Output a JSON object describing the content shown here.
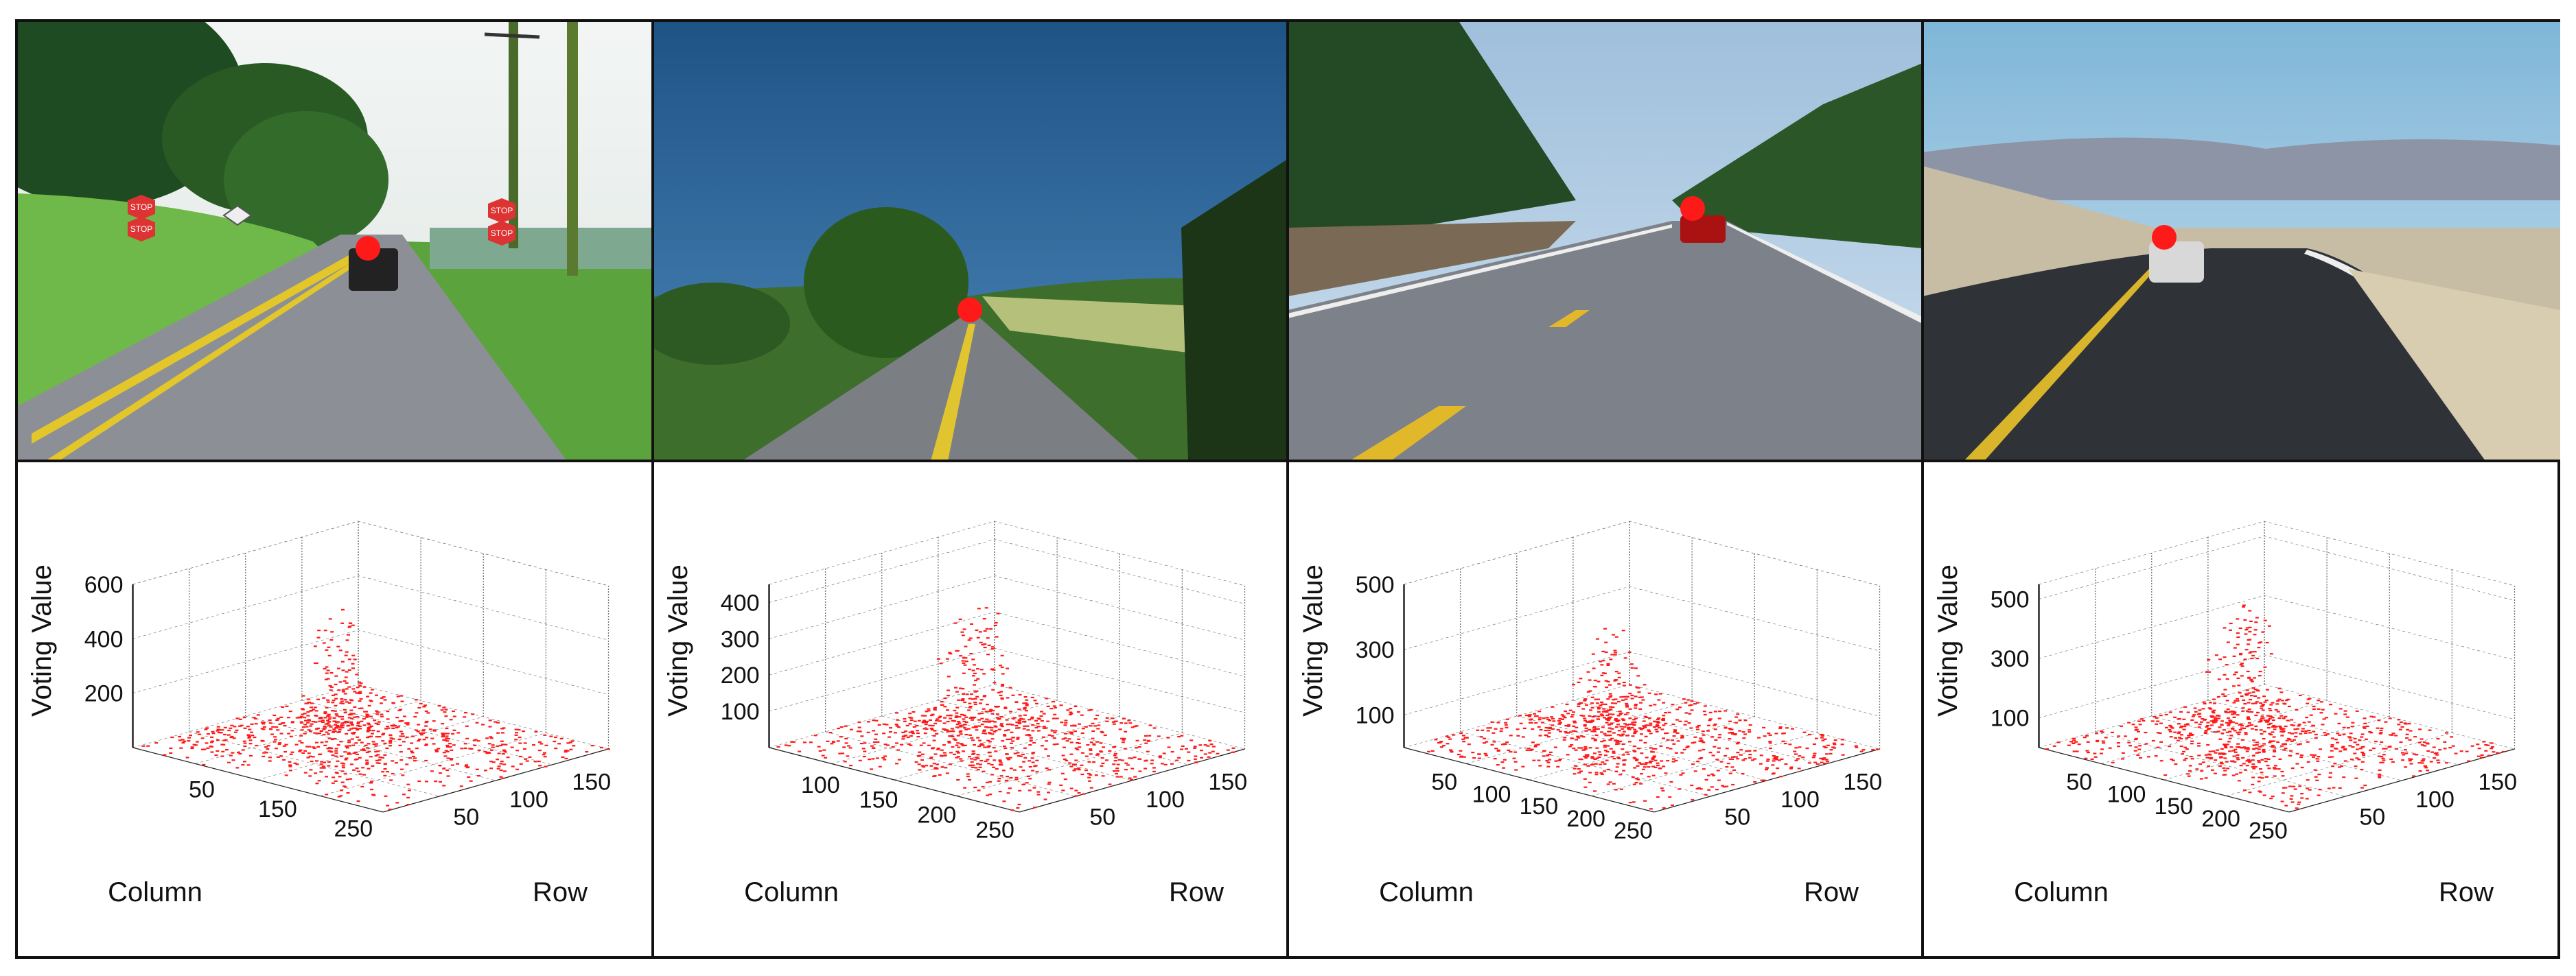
{
  "colors": {
    "marker": "#ff1a1a",
    "axis": "#222222",
    "grid": "#777777",
    "border": "#111111"
  },
  "panels": [
    {
      "scene": {
        "description_icon": "rural-road-with-stop-signs-image",
        "sign_text": "STOP",
        "vanishing_point_marker": "red-dot"
      },
      "chart": {
        "type": "scatter",
        "zlabel": "Voting Value",
        "xlabel": "Column",
        "ylabel": "Row",
        "zticks": [
          "200",
          "400",
          "600"
        ],
        "zmax": 600,
        "xticks": [
          "50",
          "150",
          "250"
        ],
        "yticks": [
          "50",
          "100",
          "150"
        ],
        "peak": 580
      }
    },
    {
      "scene": {
        "description_icon": "open-country-road-image",
        "vanishing_point_marker": "red-dot"
      },
      "chart": {
        "type": "scatter",
        "zlabel": "Voting Value",
        "xlabel": "Column",
        "ylabel": "Row",
        "zticks": [
          "100",
          "200",
          "300",
          "400"
        ],
        "zmax": 450,
        "xticks": [
          "100",
          "150",
          "200",
          "250"
        ],
        "yticks": [
          "50",
          "100",
          "150"
        ],
        "peak": 450
      }
    },
    {
      "scene": {
        "description_icon": "forest-highway-with-car-image",
        "vanishing_point_marker": "red-dot"
      },
      "chart": {
        "type": "scatter",
        "zlabel": "Voting Value",
        "xlabel": "Column",
        "ylabel": "Row",
        "zticks": [
          "100",
          "300",
          "500"
        ],
        "zmax": 500,
        "xticks": [
          "50",
          "100",
          "150",
          "200",
          "250"
        ],
        "yticks": [
          "50",
          "100",
          "150"
        ],
        "peak": 420
      }
    },
    {
      "scene": {
        "description_icon": "desert-highway-with-suv-image",
        "vanishing_point_marker": "red-dot"
      },
      "chart": {
        "type": "scatter",
        "zlabel": "Voting Value",
        "xlabel": "Column",
        "ylabel": "Row",
        "zticks": [
          "100",
          "300",
          "500"
        ],
        "zmax": 550,
        "xticks": [
          "50",
          "100",
          "150",
          "200",
          "250"
        ],
        "yticks": [
          "50",
          "100",
          "150"
        ],
        "peak": 540
      }
    }
  ]
}
